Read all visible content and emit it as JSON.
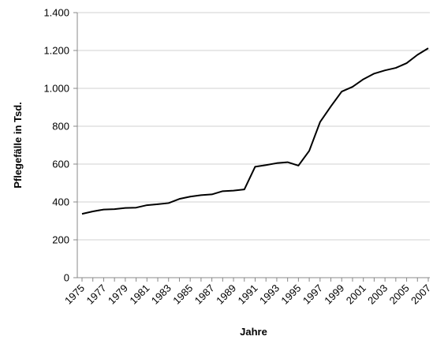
{
  "chart_data": {
    "type": "line",
    "xlabel": "Jahre",
    "ylabel": "Pflegefälle in Tsd.",
    "xlim": [
      1975,
      2007
    ],
    "ylim": [
      0,
      1400
    ],
    "y_ticks": [
      0,
      200,
      400,
      600,
      800,
      1000,
      1200,
      1400
    ],
    "y_tick_labels": [
      "0",
      "200",
      "400",
      "600",
      "800",
      "1.000",
      "1.200",
      "1.400"
    ],
    "x_ticks": [
      1975,
      1977,
      1979,
      1981,
      1983,
      1985,
      1987,
      1989,
      1991,
      1993,
      1995,
      1997,
      1999,
      2001,
      2003,
      2005,
      2007
    ],
    "x_tick_labels": [
      "1975",
      "1977",
      "1979",
      "1981",
      "1983",
      "1985",
      "1987",
      "1989",
      "1991",
      "1993",
      "1995",
      "1997",
      "1999",
      "2001",
      "2003",
      "2005",
      "2007"
    ],
    "grid": "horizontal",
    "line_color": "#000000",
    "series": [
      {
        "x": [
          1975,
          1976,
          1977,
          1978,
          1979,
          1980,
          1981,
          1982,
          1983,
          1984,
          1985,
          1986,
          1987,
          1988,
          1989,
          1990,
          1991,
          1992,
          1993,
          1994,
          1995,
          1996,
          1997,
          1998,
          1999,
          2000,
          2001,
          2002,
          2003,
          2004,
          2005,
          2006,
          2007
        ],
        "values": [
          337,
          350,
          360,
          362,
          368,
          370,
          383,
          388,
          394,
          416,
          428,
          436,
          440,
          457,
          460,
          466,
          586,
          595,
          605,
          610,
          592,
          670,
          822,
          905,
          983,
          1008,
          1048,
          1078,
          1095,
          1108,
          1133,
          1177,
          1212
        ]
      }
    ]
  }
}
